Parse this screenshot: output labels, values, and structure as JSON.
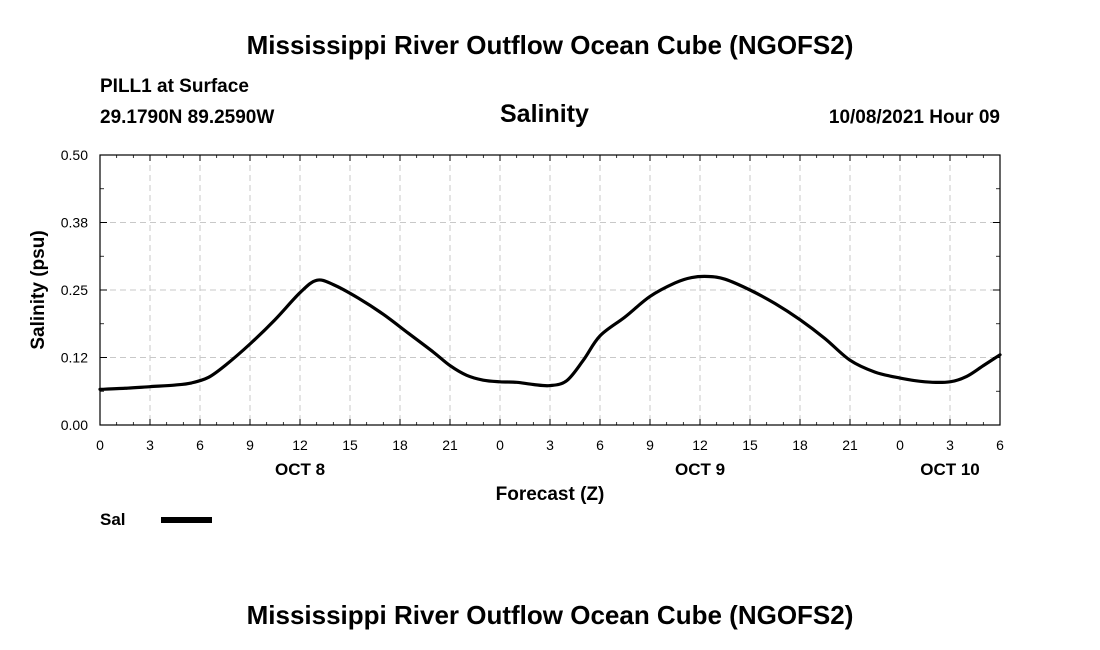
{
  "header": {
    "title": "Mississippi River Outflow Ocean Cube (NGOFS2)",
    "station": "PILL1 at Surface",
    "coords": "29.1790N  89.2590W",
    "variable": "Salinity",
    "datetime": "10/08/2021 Hour 09"
  },
  "footer": {
    "title": "Mississippi River Outflow Ocean Cube (NGOFS2)"
  },
  "chart_data": {
    "type": "line",
    "title": "Salinity",
    "xlabel": "Forecast (Z)",
    "ylabel": "Salinity (psu)",
    "xlim": [
      0,
      54
    ],
    "ylim": [
      0,
      0.5
    ],
    "yticks": [
      0,
      0.125,
      0.25,
      0.375,
      0.5
    ],
    "ytick_labels": [
      "0.00",
      "0.12",
      "0.25",
      "0.38",
      "0.50"
    ],
    "xticks": [
      0,
      3,
      6,
      9,
      12,
      15,
      18,
      21,
      24,
      27,
      30,
      33,
      36,
      39,
      42,
      45,
      48,
      51,
      54
    ],
    "xtick_labels": [
      "0",
      "3",
      "6",
      "9",
      "12",
      "15",
      "18",
      "21",
      "0",
      "3",
      "6",
      "9",
      "12",
      "15",
      "18",
      "21",
      "0",
      "3",
      "6"
    ],
    "date_labels": [
      {
        "x": 12,
        "label": "OCT 8"
      },
      {
        "x": 36,
        "label": "OCT 9"
      },
      {
        "x": 51,
        "label": "OCT 10"
      }
    ],
    "grid": true,
    "legend_position": "bottom-left",
    "series": [
      {
        "name": "Sal",
        "color": "#000000",
        "x": [
          0,
          1.5,
          3,
          4.5,
          5.5,
          6.5,
          7.5,
          9,
          10.5,
          12,
          13,
          14,
          15.5,
          17,
          18.5,
          20,
          21,
          22,
          23,
          24,
          25,
          26,
          27,
          28,
          29,
          30,
          31.5,
          33,
          34.5,
          35.5,
          36.5,
          37.5,
          39,
          40.5,
          42,
          43.5,
          45,
          46.5,
          48,
          49.5,
          51,
          52,
          53,
          54
        ],
        "values": [
          0.066,
          0.068,
          0.071,
          0.074,
          0.078,
          0.088,
          0.11,
          0.15,
          0.195,
          0.245,
          0.268,
          0.26,
          0.235,
          0.205,
          0.17,
          0.135,
          0.11,
          0.092,
          0.083,
          0.08,
          0.079,
          0.075,
          0.073,
          0.082,
          0.12,
          0.165,
          0.2,
          0.238,
          0.263,
          0.273,
          0.275,
          0.27,
          0.25,
          0.225,
          0.195,
          0.16,
          0.12,
          0.098,
          0.087,
          0.08,
          0.08,
          0.09,
          0.11,
          0.13
        ]
      }
    ]
  }
}
